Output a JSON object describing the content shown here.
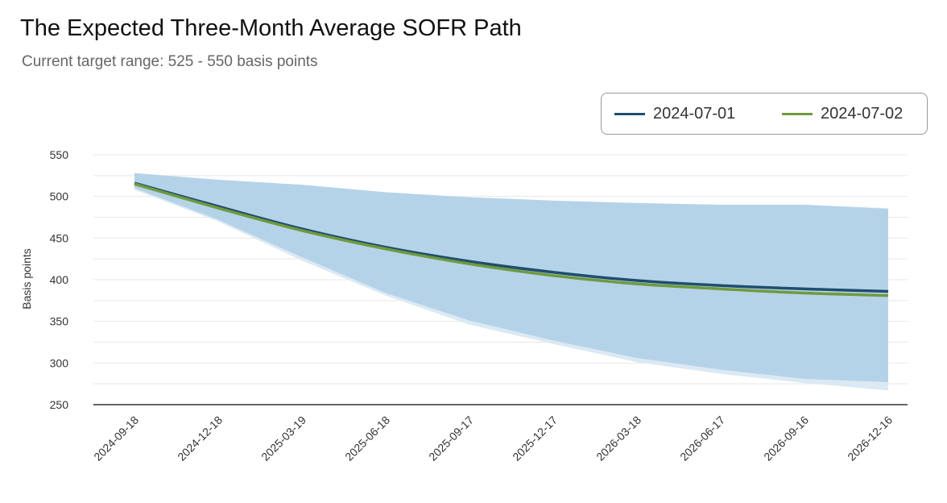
{
  "chart_data": {
    "type": "line",
    "title": "The Expected Three-Month Average SOFR Path",
    "subtitle": "Current target range: 525 - 550 basis points",
    "xlabel": "",
    "ylabel": "Basis points",
    "ylim": [
      250,
      550
    ],
    "yticks": [
      250,
      300,
      350,
      400,
      450,
      500,
      550
    ],
    "grid": true,
    "legend_position": "top-right",
    "categories": [
      "2024-09-18",
      "2024-12-18",
      "2025-03-19",
      "2025-06-18",
      "2025-09-17",
      "2025-12-17",
      "2026-03-18",
      "2026-06-17",
      "2026-09-16",
      "2026-12-16"
    ],
    "series": [
      {
        "name": "2024-07-01",
        "color": "#1f4e6e",
        "values": [
          516,
          488,
          461,
          439,
          422,
          409,
          399,
          393,
          389,
          386
        ]
      },
      {
        "name": "2024-07-02",
        "color": "#6f9a3e",
        "values": [
          515,
          486,
          459,
          437,
          419,
          405,
          395,
          389,
          384,
          381
        ]
      }
    ],
    "band_outer": {
      "color": "#dbe9f4",
      "upper": [
        528,
        520,
        514,
        505,
        499,
        495,
        492,
        490,
        490,
        486
      ],
      "lower": [
        508,
        470,
        423,
        381,
        346,
        323,
        301,
        287,
        276,
        267
      ]
    },
    "band_inner": {
      "color": "#b5d3e8",
      "upper": [
        528,
        520,
        514,
        505,
        499,
        495,
        492,
        490,
        490,
        485
      ],
      "lower": [
        510,
        472,
        427,
        384,
        351,
        327,
        306,
        292,
        281,
        277
      ]
    }
  }
}
